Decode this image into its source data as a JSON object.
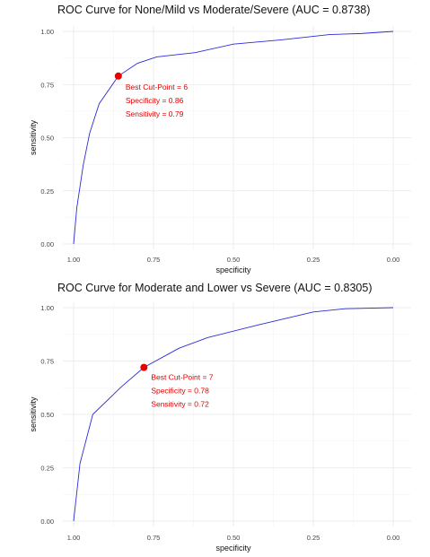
{
  "chart_data": [
    {
      "type": "line",
      "title": "ROC Curve for None/Mild vs Moderate/Severe (AUC = 0.8738)",
      "xlabel": "specificity",
      "ylabel": "sensitivity",
      "x_reversed": true,
      "xlim": [
        1.0,
        0.0
      ],
      "ylim": [
        0.0,
        1.0
      ],
      "x_ticks": [
        "1.00",
        "0.75",
        "0.50",
        "0.25",
        "0.00"
      ],
      "y_ticks": [
        "0.00",
        "0.25",
        "0.50",
        "0.75",
        "1.00"
      ],
      "grid": true,
      "line_color": "#2b2bd9",
      "marker_color": "#e60000",
      "series": [
        {
          "x": [
            1.0,
            0.99,
            0.97,
            0.95,
            0.92,
            0.86,
            0.8,
            0.74,
            0.62,
            0.5,
            0.35,
            0.2,
            0.1,
            0.0
          ],
          "y": [
            0.0,
            0.17,
            0.37,
            0.52,
            0.66,
            0.79,
            0.85,
            0.88,
            0.9,
            0.94,
            0.96,
            0.985,
            0.99,
            1.0
          ]
        }
      ],
      "best_point": {
        "x": 0.86,
        "y": 0.79
      },
      "annotations": [
        "Best Cut-Point = 6",
        "Specificity = 0.86",
        "Sensitivity = 0.79"
      ]
    },
    {
      "type": "line",
      "title": "ROC Curve for Moderate and Lower vs Severe (AUC = 0.8305)",
      "xlabel": "specificity",
      "ylabel": "sensitivity",
      "x_reversed": true,
      "xlim": [
        1.0,
        0.0
      ],
      "ylim": [
        0.0,
        1.0
      ],
      "x_ticks": [
        "1.00",
        "0.75",
        "0.50",
        "0.25",
        "0.00"
      ],
      "y_ticks": [
        "0.00",
        "0.25",
        "0.50",
        "0.75",
        "1.00"
      ],
      "grid": true,
      "line_color": "#2b2bd9",
      "marker_color": "#e60000",
      "series": [
        {
          "x": [
            1.0,
            0.98,
            0.94,
            0.85,
            0.78,
            0.67,
            0.58,
            0.42,
            0.25,
            0.15,
            0.0
          ],
          "y": [
            0.0,
            0.27,
            0.5,
            0.63,
            0.72,
            0.81,
            0.86,
            0.92,
            0.98,
            0.995,
            1.0
          ]
        }
      ],
      "best_point": {
        "x": 0.78,
        "y": 0.72
      },
      "annotations": [
        "Best Cut-Point = 7",
        "Specificity = 0.78",
        "Sensitivity = 0.72"
      ]
    }
  ]
}
